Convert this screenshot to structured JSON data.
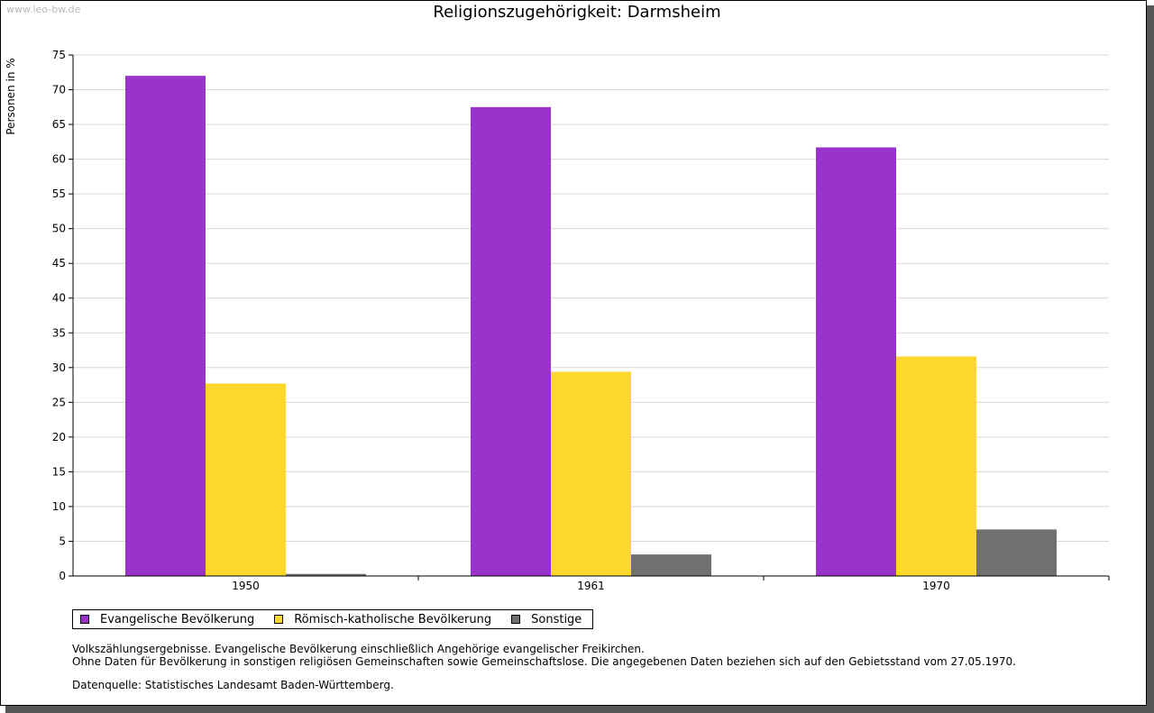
{
  "watermark": "www.leo-bw.de",
  "notes": {
    "line1": "Volkszählungsergebnisse. Evangelische Bevölkerung einschließlich Angehörige evangelischer Freikirchen.",
    "line2": "Ohne Daten für Bevölkerung in sonstigen religiösen Gemeinschaften sowie Gemeinschaftslose. Die angegebenen Daten beziehen sich auf den Gebietsstand vom 27.05.1970.",
    "source": "Datenquelle: Statistisches Landesamt Baden-Württemberg."
  },
  "chart_data": {
    "type": "bar",
    "title": "Religionszugehörigkeit: Darmsheim",
    "xlabel": "",
    "ylabel": "Personen in %",
    "categories": [
      "1950",
      "1961",
      "1970"
    ],
    "ylim": [
      0,
      75
    ],
    "yticks": [
      0,
      5,
      10,
      15,
      20,
      25,
      30,
      35,
      40,
      45,
      50,
      55,
      60,
      65,
      70,
      75
    ],
    "grid": true,
    "legend_position": "bottom-left",
    "series": [
      {
        "name": "Evangelische Bevölkerung",
        "color": "#9933cc",
        "values": [
          72.0,
          67.5,
          61.7
        ]
      },
      {
        "name": "Römisch-katholische Bevölkerung",
        "color": "#fcd72d",
        "values": [
          27.7,
          29.4,
          31.6
        ]
      },
      {
        "name": "Sonstige",
        "color": "#707070",
        "values": [
          0.3,
          3.1,
          6.7
        ]
      }
    ]
  }
}
